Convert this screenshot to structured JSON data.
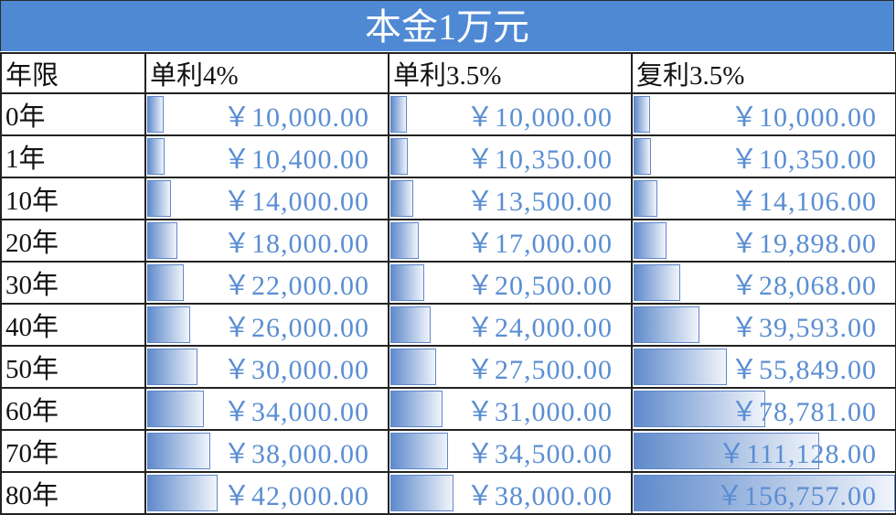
{
  "title": "本金1万元",
  "headers": [
    "年限",
    "单利4%",
    "单利3.5%",
    "复利3.5%"
  ],
  "bar_color": "#5f8acb",
  "value_color": "#5a8ed2",
  "rows": [
    {
      "year": "0年",
      "values": [
        "￥10,000.00",
        "￥10,000.00",
        "￥10,000.00"
      ],
      "nums": [
        10000,
        10000,
        10000
      ]
    },
    {
      "year": "1年",
      "values": [
        "￥10,400.00",
        "￥10,350.00",
        "￥10,350.00"
      ],
      "nums": [
        10400,
        10350,
        10350
      ]
    },
    {
      "year": "10年",
      "values": [
        "￥14,000.00",
        "￥13,500.00",
        "￥14,106.00"
      ],
      "nums": [
        14000,
        13500,
        14106
      ]
    },
    {
      "year": "20年",
      "values": [
        "￥18,000.00",
        "￥17,000.00",
        "￥19,898.00"
      ],
      "nums": [
        18000,
        17000,
        19898
      ]
    },
    {
      "year": "30年",
      "values": [
        "￥22,000.00",
        "￥20,500.00",
        "￥28,068.00"
      ],
      "nums": [
        22000,
        20500,
        28068
      ]
    },
    {
      "year": "40年",
      "values": [
        "￥26,000.00",
        "￥24,000.00",
        "￥39,593.00"
      ],
      "nums": [
        26000,
        24000,
        39593
      ]
    },
    {
      "year": "50年",
      "values": [
        "￥30,000.00",
        "￥27,500.00",
        "￥55,849.00"
      ],
      "nums": [
        30000,
        27500,
        55849
      ]
    },
    {
      "year": "60年",
      "values": [
        "￥34,000.00",
        "￥31,000.00",
        "￥78,781.00"
      ],
      "nums": [
        34000,
        31000,
        78781
      ]
    },
    {
      "year": "70年",
      "values": [
        "￥38,000.00",
        "￥34,500.00",
        "￥111,128.00"
      ],
      "nums": [
        38000,
        34500,
        111128
      ]
    },
    {
      "year": "80年",
      "values": [
        "￥42,000.00",
        "￥38,000.00",
        "￥156,757.00"
      ],
      "nums": [
        42000,
        38000,
        156757
      ]
    }
  ]
}
